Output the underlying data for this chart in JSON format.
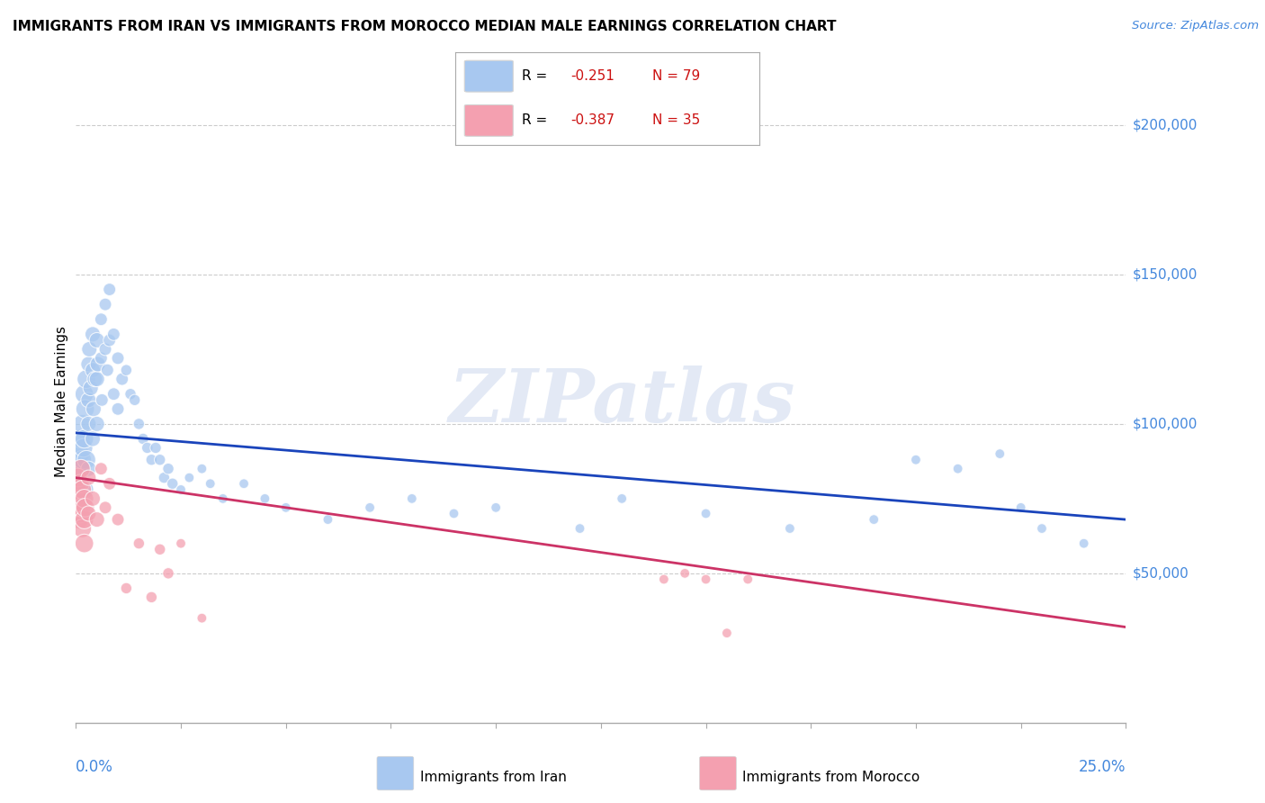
{
  "title": "IMMIGRANTS FROM IRAN VS IMMIGRANTS FROM MOROCCO MEDIAN MALE EARNINGS CORRELATION CHART",
  "source": "Source: ZipAtlas.com",
  "ylabel": "Median Male Earnings",
  "ylim": [
    0,
    215000
  ],
  "xlim": [
    0.0,
    0.25
  ],
  "watermark_text": "ZIPatlas",
  "iran_color": "#a8c8f0",
  "morocco_color": "#f4a0b0",
  "iran_line_color": "#1a44bb",
  "morocco_line_color": "#cc3366",
  "iran_R": "-0.251",
  "iran_N": "79",
  "morocco_R": "-0.387",
  "morocco_N": "35",
  "ytick_values": [
    50000,
    100000,
    150000,
    200000
  ],
  "ytick_labels": [
    "$50,000",
    "$100,000",
    "$150,000",
    "$200,000"
  ],
  "grid_color": "#cccccc",
  "background_color": "#ffffff",
  "tick_label_color": "#4488dd",
  "iran_scatter_x": [
    0.0005,
    0.0008,
    0.001,
    0.001,
    0.0012,
    0.0013,
    0.0015,
    0.0015,
    0.0018,
    0.002,
    0.002,
    0.002,
    0.0022,
    0.0025,
    0.0025,
    0.003,
    0.003,
    0.003,
    0.003,
    0.0032,
    0.0035,
    0.004,
    0.004,
    0.004,
    0.0042,
    0.0045,
    0.005,
    0.005,
    0.005,
    0.0052,
    0.006,
    0.006,
    0.0062,
    0.007,
    0.007,
    0.0075,
    0.008,
    0.008,
    0.009,
    0.009,
    0.01,
    0.01,
    0.011,
    0.012,
    0.013,
    0.014,
    0.015,
    0.016,
    0.017,
    0.018,
    0.019,
    0.02,
    0.021,
    0.022,
    0.023,
    0.025,
    0.027,
    0.03,
    0.032,
    0.035,
    0.04,
    0.045,
    0.05,
    0.06,
    0.07,
    0.08,
    0.09,
    0.1,
    0.12,
    0.13,
    0.15,
    0.17,
    0.19,
    0.2,
    0.21,
    0.22,
    0.225,
    0.23,
    0.24
  ],
  "iran_scatter_y": [
    85000,
    80000,
    90000,
    75000,
    95000,
    85000,
    100000,
    88000,
    92000,
    110000,
    95000,
    78000,
    105000,
    115000,
    88000,
    120000,
    108000,
    100000,
    85000,
    125000,
    112000,
    130000,
    118000,
    95000,
    105000,
    115000,
    128000,
    115000,
    100000,
    120000,
    135000,
    122000,
    108000,
    140000,
    125000,
    118000,
    145000,
    128000,
    130000,
    110000,
    122000,
    105000,
    115000,
    118000,
    110000,
    108000,
    100000,
    95000,
    92000,
    88000,
    92000,
    88000,
    82000,
    85000,
    80000,
    78000,
    82000,
    85000,
    80000,
    75000,
    80000,
    75000,
    72000,
    68000,
    72000,
    75000,
    70000,
    72000,
    65000,
    75000,
    70000,
    65000,
    68000,
    88000,
    85000,
    90000,
    72000,
    65000,
    60000
  ],
  "morocco_scatter_x": [
    0.0003,
    0.0005,
    0.0005,
    0.0007,
    0.0008,
    0.001,
    0.001,
    0.0012,
    0.0013,
    0.0015,
    0.0015,
    0.002,
    0.002,
    0.002,
    0.0022,
    0.003,
    0.003,
    0.004,
    0.005,
    0.006,
    0.007,
    0.008,
    0.01,
    0.012,
    0.015,
    0.018,
    0.02,
    0.022,
    0.025,
    0.03,
    0.14,
    0.145,
    0.15,
    0.155,
    0.16
  ],
  "morocco_scatter_y": [
    78000,
    82000,
    72000,
    75000,
    68000,
    80000,
    70000,
    85000,
    72000,
    78000,
    65000,
    75000,
    68000,
    60000,
    72000,
    82000,
    70000,
    75000,
    68000,
    85000,
    72000,
    80000,
    68000,
    45000,
    60000,
    42000,
    58000,
    50000,
    60000,
    35000,
    48000,
    50000,
    48000,
    30000,
    48000
  ],
  "iran_line_x": [
    0.0,
    0.25
  ],
  "iran_line_y": [
    97000,
    68000
  ],
  "morocco_line_x": [
    0.0,
    0.25
  ],
  "morocco_line_y": [
    82000,
    32000
  ]
}
